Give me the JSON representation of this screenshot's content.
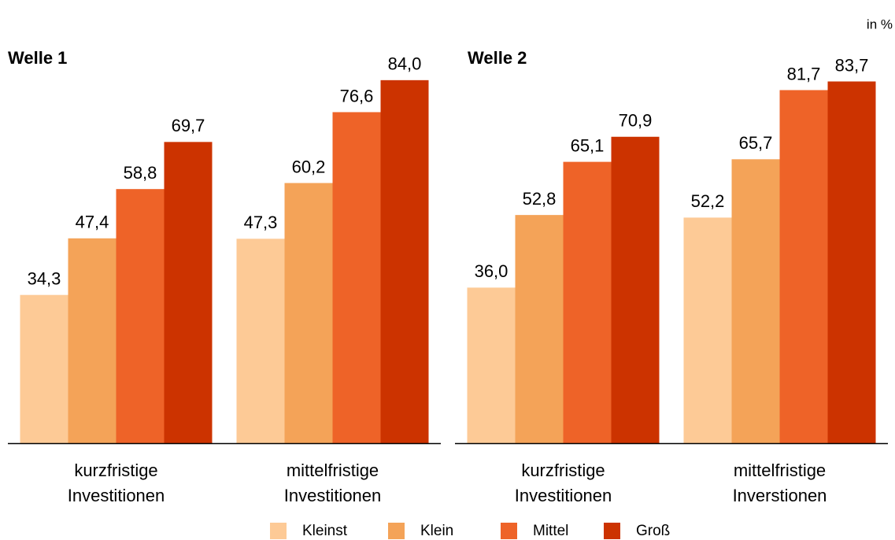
{
  "unit_label": "in %",
  "chart_data": [
    {
      "type": "bar",
      "title": "Welle 1",
      "categories": [
        "kurzfristige Investitionen",
        "mittelfristige Investitionen"
      ],
      "series": [
        {
          "name": "Kleinst",
          "color": "#fdca96",
          "values": [
            34.3,
            47.3
          ],
          "value_labels": [
            "34,3",
            "47,3"
          ]
        },
        {
          "name": "Klein",
          "color": "#f4a358",
          "values": [
            47.4,
            60.2
          ],
          "value_labels": [
            "47,4",
            "60,2"
          ]
        },
        {
          "name": "Mittel",
          "color": "#ee6328",
          "values": [
            58.8,
            76.6
          ],
          "value_labels": [
            "58,8",
            "76,6"
          ]
        },
        {
          "name": "Groß",
          "color": "#cc3300",
          "values": [
            69.7,
            84.0
          ],
          "value_labels": [
            "69,7",
            "84,0"
          ]
        }
      ],
      "ylim": [
        0,
        100
      ]
    },
    {
      "type": "bar",
      "title": "Welle 2",
      "categories": [
        "kurzfristige Investitionen",
        "mittelfristige Inverstionen"
      ],
      "series": [
        {
          "values": [
            36.0,
            52.2
          ],
          "value_labels": [
            "36,0",
            "52,2"
          ]
        },
        {
          "values": [
            52.8,
            65.7
          ],
          "value_labels": [
            "52,8",
            "65,7"
          ]
        },
        {
          "values": [
            65.1,
            81.7
          ],
          "value_labels": [
            "65,1",
            "81,7"
          ]
        },
        {
          "values": [
            70.9,
            83.7
          ],
          "value_labels": [
            "70,9",
            "83,7"
          ]
        }
      ],
      "ylim": [
        0,
        100
      ]
    }
  ]
}
